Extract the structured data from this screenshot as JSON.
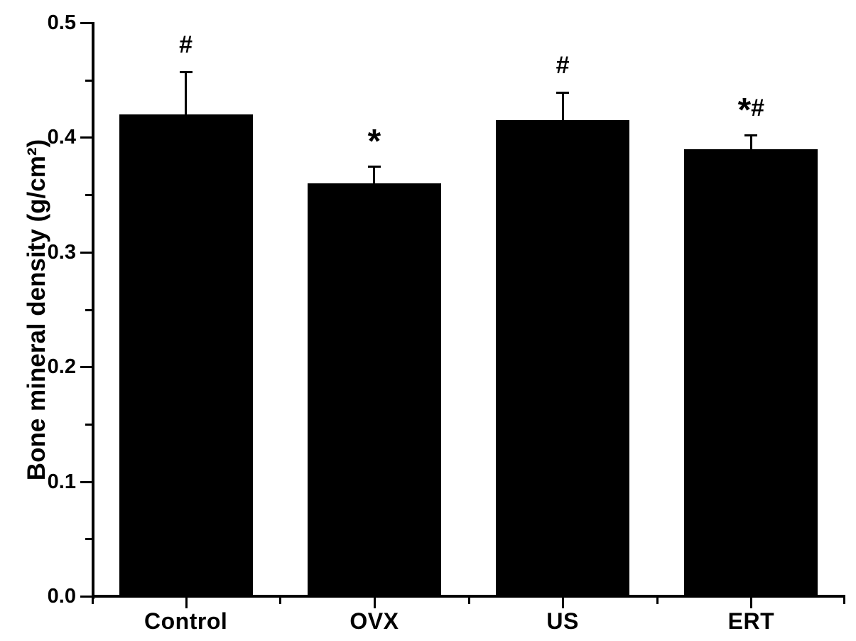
{
  "figure": {
    "background_color": "#ffffff",
    "ink_color": "#000000",
    "title": ""
  },
  "chart_data": {
    "type": "bar",
    "title": "",
    "xlabel": "",
    "ylabel": "Bone mineral density (g/cm²)",
    "categories": [
      "Control",
      "OVX",
      "US",
      "ERT"
    ],
    "values": [
      0.42,
      0.36,
      0.415,
      0.39
    ],
    "errors": [
      0.037,
      0.015,
      0.024,
      0.012
    ],
    "annotations": [
      "#",
      "*",
      "#",
      "*#"
    ],
    "ylim": [
      0.0,
      0.5
    ],
    "ytick_step": 0.1,
    "ytick_minor_step": 0.05,
    "ytick_labels": [
      "0.0",
      "0.1",
      "0.2",
      "0.3",
      "0.4",
      "0.5"
    ],
    "bar_color": "#000000",
    "error_bar_color": "#000000",
    "grid": false,
    "legend": null
  }
}
